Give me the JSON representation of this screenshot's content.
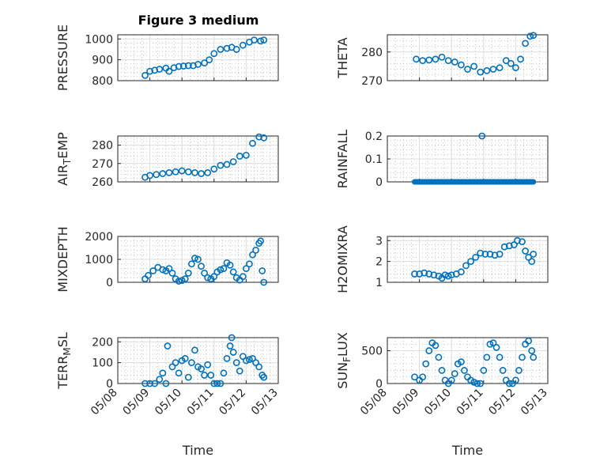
{
  "figure_title": "Figure 3 medium",
  "x_axis": {
    "label": "Time",
    "tick_labels": [
      "05/08",
      "05/09",
      "05/10",
      "05/11",
      "05/12",
      "05/13"
    ],
    "range_days": [
      8,
      13
    ]
  },
  "colors": {
    "marker": "#0072BD",
    "axis": "#262626",
    "grid": "#dcdcdc"
  },
  "chart_data": [
    {
      "type": "scatter",
      "id": "pressure",
      "ylabel": "PRESSURE",
      "ylim": [
        800,
        1020
      ],
      "yticks": [
        800,
        900,
        1000
      ],
      "grid": true,
      "x": [
        8.85,
        9.0,
        9.15,
        9.3,
        9.5,
        9.6,
        9.75,
        9.9,
        10.05,
        10.2,
        10.35,
        10.5,
        10.7,
        10.85,
        11.0,
        11.2,
        11.4,
        11.55,
        11.7,
        11.9,
        12.1,
        12.25,
        12.45,
        12.55
      ],
      "y": [
        825,
        845,
        850,
        855,
        860,
        845,
        862,
        868,
        870,
        872,
        872,
        878,
        885,
        900,
        930,
        950,
        955,
        960,
        950,
        970,
        985,
        995,
        990,
        995
      ]
    },
    {
      "type": "scatter",
      "id": "theta",
      "ylabel": "THETA",
      "ylim": [
        270,
        286
      ],
      "yticks": [
        270,
        280
      ],
      "grid": true,
      "x": [
        8.9,
        9.1,
        9.3,
        9.5,
        9.7,
        9.9,
        10.1,
        10.3,
        10.5,
        10.7,
        10.9,
        11.1,
        11.3,
        11.5,
        11.7,
        11.85,
        12.0,
        12.15,
        12.3,
        12.45,
        12.55
      ],
      "y": [
        277.5,
        277,
        277.2,
        277.5,
        278.2,
        277,
        276.5,
        275.5,
        274,
        275,
        273,
        273.5,
        274,
        274.5,
        277,
        276,
        274.5,
        277.5,
        283,
        285.5,
        285.8
      ]
    },
    {
      "type": "scatter",
      "id": "air_temp",
      "ylabel": "AIR_TEMP",
      "ylim": [
        260,
        285
      ],
      "yticks": [
        260,
        270,
        280
      ],
      "grid": true,
      "x": [
        8.85,
        9.0,
        9.2,
        9.4,
        9.6,
        9.8,
        10.0,
        10.2,
        10.4,
        10.6,
        10.8,
        11.0,
        11.2,
        11.4,
        11.6,
        11.8,
        12.0,
        12.2,
        12.4,
        12.55
      ],
      "y": [
        262.5,
        263.5,
        264,
        264.5,
        265,
        265.5,
        266,
        265.5,
        265,
        264.5,
        265,
        267,
        269,
        269.5,
        271,
        274,
        274.5,
        281,
        284.5,
        284
      ]
    },
    {
      "type": "scatter",
      "id": "rainfall",
      "ylabel": "RAINFALL",
      "ylim": [
        0,
        0.2
      ],
      "yticks": [
        0,
        0.1,
        0.2
      ],
      "grid": true,
      "x": [
        8.85,
        9.0,
        9.2,
        9.4,
        9.6,
        9.8,
        10.0,
        10.2,
        10.4,
        10.6,
        10.8,
        10.95,
        11.0,
        11.2,
        11.4,
        11.6,
        11.8,
        12.0,
        12.2,
        12.4,
        12.55
      ],
      "y": [
        0,
        0,
        0,
        0,
        0,
        0,
        0,
        0,
        0,
        0,
        0,
        0.2,
        0,
        0,
        0,
        0,
        0,
        0,
        0,
        0,
        0
      ]
    },
    {
      "type": "scatter",
      "id": "mixdepth",
      "ylabel": "MIXDEPTH",
      "ylim": [
        0,
        2000
      ],
      "yticks": [
        0,
        1000,
        2000
      ],
      "grid": true,
      "x": [
        8.85,
        8.95,
        9.1,
        9.25,
        9.4,
        9.5,
        9.6,
        9.7,
        9.8,
        9.9,
        10.0,
        10.1,
        10.2,
        10.3,
        10.4,
        10.5,
        10.6,
        10.7,
        10.8,
        10.9,
        11.0,
        11.1,
        11.2,
        11.3,
        11.4,
        11.5,
        11.6,
        11.7,
        11.8,
        11.9,
        12.0,
        12.1,
        12.2,
        12.3,
        12.4,
        12.45,
        12.5,
        12.55
      ],
      "y": [
        150,
        300,
        500,
        650,
        550,
        500,
        600,
        400,
        150,
        50,
        80,
        150,
        400,
        800,
        1050,
        1000,
        700,
        400,
        200,
        150,
        250,
        450,
        550,
        600,
        850,
        750,
        450,
        200,
        100,
        250,
        600,
        800,
        1200,
        1400,
        1700,
        1800,
        500,
        0
      ]
    },
    {
      "type": "scatter",
      "id": "h2omixra",
      "ylabel": "H2OMIXRA",
      "ylim": [
        1,
        3.2
      ],
      "yticks": [
        1,
        2,
        3
      ],
      "grid": true,
      "x": [
        8.85,
        9.0,
        9.15,
        9.3,
        9.45,
        9.6,
        9.7,
        9.8,
        9.9,
        10.0,
        10.15,
        10.3,
        10.45,
        10.6,
        10.75,
        10.9,
        11.05,
        11.2,
        11.35,
        11.5,
        11.65,
        11.8,
        11.95,
        12.05,
        12.2,
        12.3,
        12.4,
        12.5,
        12.55
      ],
      "y": [
        1.4,
        1.4,
        1.45,
        1.4,
        1.35,
        1.3,
        1.2,
        1.35,
        1.3,
        1.35,
        1.4,
        1.5,
        1.8,
        2.0,
        2.2,
        2.4,
        2.35,
        2.35,
        2.3,
        2.35,
        2.7,
        2.75,
        2.8,
        3.0,
        2.95,
        2.5,
        2.2,
        2.0,
        2.35
      ]
    },
    {
      "type": "scatter",
      "id": "terr_msl",
      "ylabel": "TERR_MSL",
      "ylim": [
        0,
        220
      ],
      "yticks": [
        0,
        100,
        200
      ],
      "grid": true,
      "x": [
        8.85,
        9.0,
        9.15,
        9.3,
        9.4,
        9.5,
        9.55,
        9.7,
        9.8,
        9.9,
        10.0,
        10.1,
        10.2,
        10.3,
        10.4,
        10.5,
        10.6,
        10.7,
        10.8,
        10.9,
        11.0,
        11.1,
        11.2,
        11.3,
        11.4,
        11.5,
        11.55,
        11.6,
        11.7,
        11.8,
        11.9,
        12.0,
        12.1,
        12.2,
        12.3,
        12.4,
        12.5,
        12.55
      ],
      "y": [
        0,
        0,
        0,
        20,
        50,
        0,
        180,
        80,
        100,
        50,
        110,
        120,
        30,
        100,
        160,
        80,
        70,
        40,
        90,
        40,
        0,
        0,
        0,
        50,
        120,
        180,
        220,
        150,
        100,
        60,
        130,
        110,
        115,
        120,
        100,
        80,
        40,
        30
      ]
    },
    {
      "type": "scatter",
      "id": "sun_flux",
      "ylabel": "SUN_FLUX",
      "ylim": [
        0,
        700
      ],
      "yticks": [
        0,
        500
      ],
      "grid": true,
      "x": [
        8.85,
        9.0,
        9.1,
        9.2,
        9.3,
        9.4,
        9.5,
        9.6,
        9.7,
        9.8,
        9.9,
        10.0,
        10.1,
        10.2,
        10.3,
        10.4,
        10.5,
        10.6,
        10.7,
        10.8,
        10.9,
        11.0,
        11.1,
        11.2,
        11.3,
        11.4,
        11.5,
        11.6,
        11.7,
        11.8,
        11.9,
        12.0,
        12.1,
        12.2,
        12.3,
        12.4,
        12.5,
        12.55
      ],
      "y": [
        100,
        50,
        100,
        300,
        500,
        620,
        580,
        400,
        200,
        50,
        0,
        50,
        150,
        300,
        330,
        200,
        100,
        50,
        20,
        0,
        0,
        200,
        400,
        600,
        620,
        550,
        400,
        200,
        50,
        0,
        0,
        50,
        200,
        400,
        600,
        650,
        500,
        400
      ]
    }
  ]
}
